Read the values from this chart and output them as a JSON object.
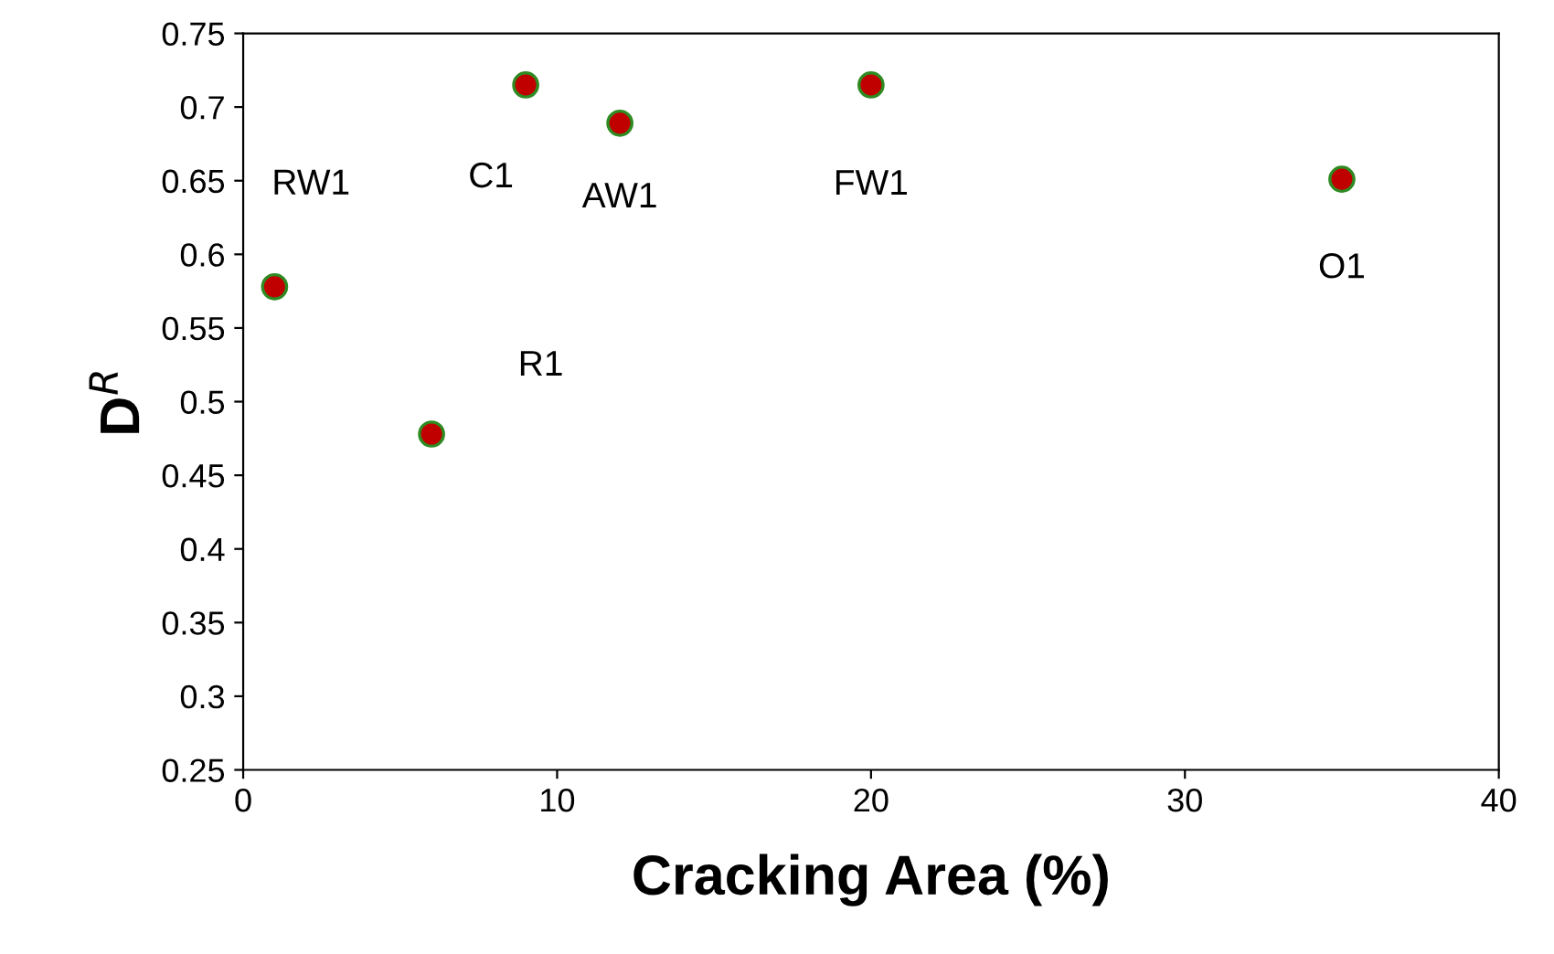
{
  "chart_data": {
    "type": "scatter",
    "xlabel": "Cracking Area (%)",
    "ylabel": "D$^{R}$",
    "x": [
      1,
      6,
      9,
      12,
      20,
      35
    ],
    "values": [
      0.578,
      0.478,
      0.715,
      0.689,
      0.715,
      0.651
    ],
    "color": "#c00000",
    "marker": "circle",
    "xlim": [
      0,
      40
    ],
    "xticks": [
      0,
      10,
      20,
      30,
      40
    ],
    "ylim": [
      0.25,
      0.75
    ],
    "yticks": [
      0.25,
      0.3,
      0.35,
      0.4,
      0.45,
      0.5,
      0.55,
      0.6,
      0.65,
      0.7,
      0.75
    ],
    "grid": false,
    "legend": false,
    "annotations": [
      "RW1",
      "R1",
      {
        "text": "C1",
        "x": 9,
        "y": 0.715
      },
      {
        "text": "AW1",
        "x": 12,
        "y": 0.689
      },
      {
        "text": "FW1",
        "x": 20,
        "y": 0.715
      },
      {
        "text": "O1",
        "x": 35,
        "y": 0.651
      }
    ]
  }
}
